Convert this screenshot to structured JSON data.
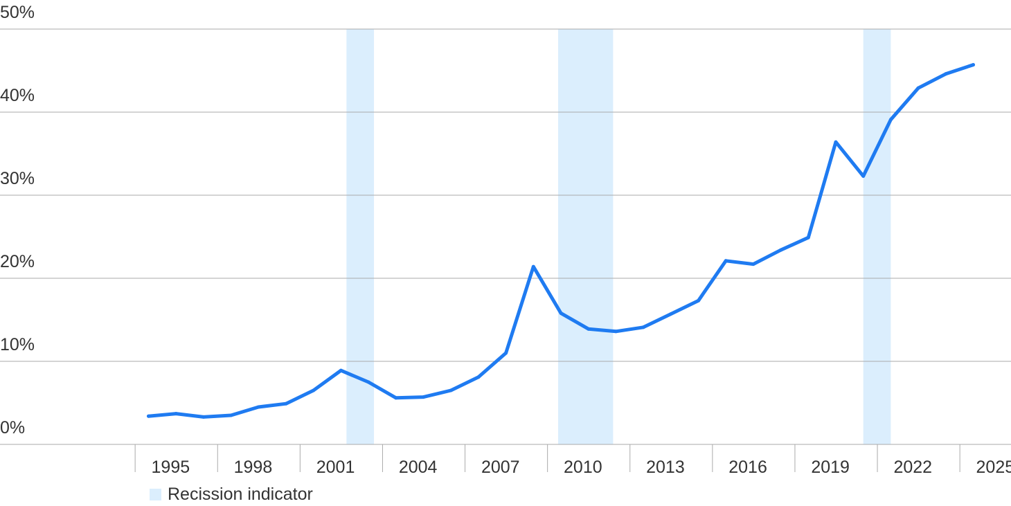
{
  "chart_data": {
    "type": "line",
    "title": "",
    "xlabel": "",
    "ylabel": "",
    "ylim": [
      0,
      50
    ],
    "y_ticks": [
      {
        "value": 0,
        "label": "0%"
      },
      {
        "value": 10,
        "label": "10%"
      },
      {
        "value": 20,
        "label": "20%"
      },
      {
        "value": 30,
        "label": "30%"
      },
      {
        "value": 40,
        "label": "40%"
      },
      {
        "value": 50,
        "label": "50%"
      }
    ],
    "x_ticks": [
      "1995",
      "1998",
      "2001",
      "2004",
      "2007",
      "2010",
      "2013",
      "2016",
      "2019",
      "2022",
      "2025"
    ],
    "grid": "horizontal",
    "series": [
      {
        "x": [
          1994,
          1995,
          1996,
          1997,
          1998,
          1999,
          2000,
          2001,
          2002,
          2003,
          2004,
          2005,
          2006,
          2007,
          2008,
          2009,
          2010,
          2011,
          2012,
          2013,
          2014,
          2015,
          2016,
          2017,
          2018,
          2019,
          2020,
          2021,
          2022,
          2023,
          2024
        ],
        "values": [
          3.4,
          3.7,
          3.3,
          3.5,
          4.5,
          4.9,
          6.5,
          8.9,
          7.5,
          5.6,
          5.7,
          6.5,
          8.1,
          11.0,
          21.4,
          15.8,
          13.9,
          13.6,
          14.1,
          15.7,
          17.3,
          22.1,
          21.7,
          23.4,
          24.9,
          36.4,
          32.3,
          39.1,
          42.9,
          44.6,
          45.7
        ]
      }
    ],
    "recessions": [
      [
        2001.2,
        2002.2
      ],
      [
        2008.9,
        2010.9
      ],
      [
        2020.0,
        2021.0
      ]
    ],
    "legend": {
      "label": "Recission indicator",
      "placement": "bottom-left"
    },
    "colors": {
      "line": "#1f7bf1",
      "recession": "#dbeefd",
      "grid": "#aaaaaa",
      "text": "#333333"
    }
  }
}
